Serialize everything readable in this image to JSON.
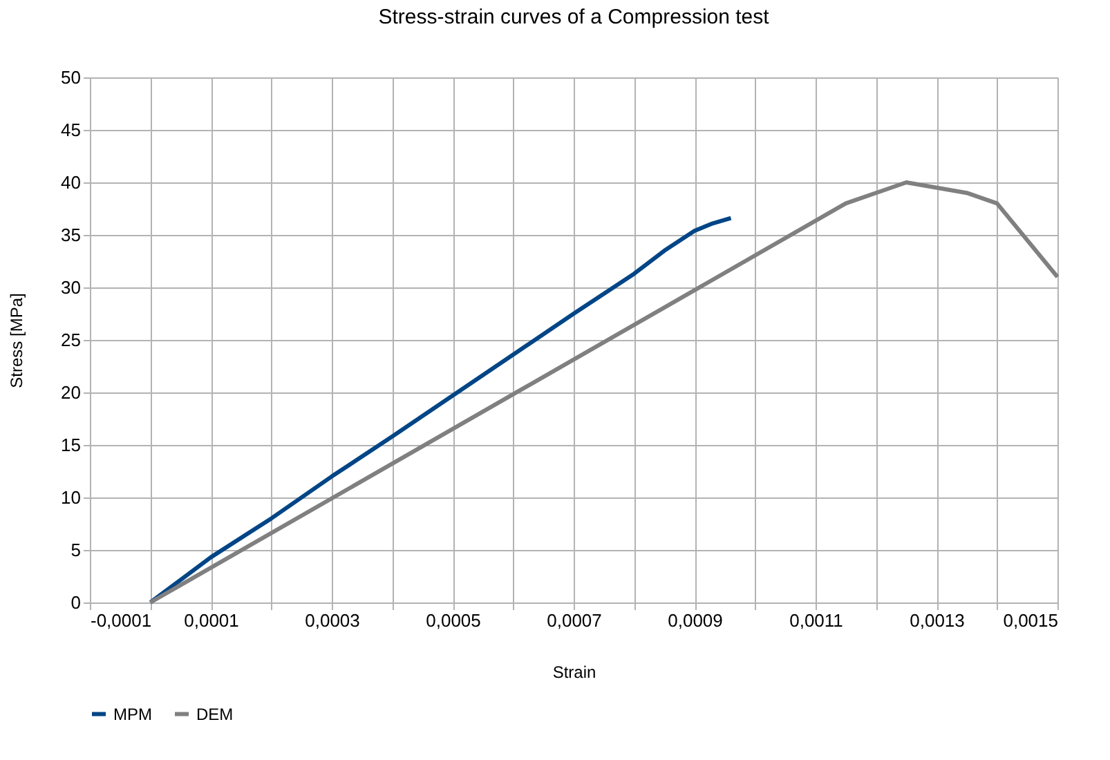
{
  "chart_data": {
    "type": "line",
    "title": "Stress-strain curves of a Compression test",
    "xlabel": "Strain",
    "ylabel": "Stress [MPa]",
    "xlim": [
      -0.0001,
      0.0015
    ],
    "xticks": [
      {
        "value": -0.0001,
        "label": "-0,0001"
      },
      {
        "value": 0,
        "label": null
      },
      {
        "value": 0.0001,
        "label": "0,0001"
      },
      {
        "value": 0.0002,
        "label": null
      },
      {
        "value": 0.0003,
        "label": "0,0003"
      },
      {
        "value": 0.0004,
        "label": null
      },
      {
        "value": 0.0005,
        "label": "0,0005"
      },
      {
        "value": 0.0006,
        "label": null
      },
      {
        "value": 0.0007,
        "label": "0,0007"
      },
      {
        "value": 0.0008,
        "label": null
      },
      {
        "value": 0.0009,
        "label": "0,0009"
      },
      {
        "value": 0.001,
        "label": null
      },
      {
        "value": 0.0011,
        "label": "0,0011"
      },
      {
        "value": 0.0012,
        "label": null
      },
      {
        "value": 0.0013,
        "label": "0,0013"
      },
      {
        "value": 0.0014,
        "label": null
      },
      {
        "value": 0.0015,
        "label": "0,0015"
      }
    ],
    "ylim": [
      0,
      50
    ],
    "yticks": [
      0,
      5,
      10,
      15,
      20,
      25,
      30,
      35,
      40,
      45,
      50
    ],
    "grid": true,
    "legend": "bottom",
    "marker": "none",
    "line_style": "solid",
    "series": [
      {
        "name": "MPM",
        "color": "#004586",
        "x": [
          0,
          0.0001,
          0.0002,
          0.0003,
          0.0004,
          0.0005,
          0.0006,
          0.0007,
          0.0008,
          0.00085,
          0.0009,
          0.00093,
          0.00096
        ],
        "values": [
          0,
          4.3,
          8,
          12,
          15.8,
          19.7,
          23.6,
          27.5,
          31.3,
          33.5,
          35.4,
          36.1,
          36.6
        ]
      },
      {
        "name": "DEM",
        "color": "#808080",
        "x": [
          0,
          0.00115,
          0.00125,
          0.00135,
          0.0014,
          0.0015
        ],
        "values": [
          0,
          38,
          40,
          39,
          38,
          31
        ]
      }
    ]
  }
}
